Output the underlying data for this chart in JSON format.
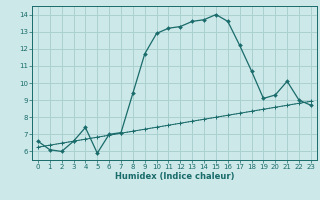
{
  "xlabel": "Humidex (Indice chaleur)",
  "bg_color": "#cce8e8",
  "grid_color": "#aad0d0",
  "line_color": "#1a6b6b",
  "xlim": [
    -0.5,
    23.5
  ],
  "ylim": [
    5.5,
    14.5
  ],
  "xticks": [
    0,
    1,
    2,
    3,
    4,
    5,
    6,
    7,
    8,
    9,
    10,
    11,
    12,
    13,
    14,
    15,
    16,
    17,
    18,
    19,
    20,
    21,
    22,
    23
  ],
  "yticks": [
    6,
    7,
    8,
    9,
    10,
    11,
    12,
    13,
    14
  ],
  "curve1_x": [
    0,
    1,
    2,
    3,
    4,
    5,
    6,
    7,
    8,
    9,
    10,
    11,
    12,
    13,
    14,
    15,
    16,
    17,
    18,
    19,
    20,
    21,
    22,
    23
  ],
  "curve1_y": [
    6.6,
    6.1,
    6.0,
    6.6,
    7.4,
    5.9,
    7.0,
    7.1,
    9.4,
    11.7,
    12.9,
    13.2,
    13.3,
    13.6,
    13.7,
    14.0,
    13.6,
    12.2,
    10.7,
    9.1,
    9.3,
    10.1,
    9.0,
    8.7
  ],
  "curve2_x": [
    0,
    1,
    2,
    3,
    4,
    5,
    6,
    7,
    8,
    9,
    10,
    11,
    12,
    13,
    14,
    15,
    16,
    17,
    18,
    19,
    20,
    21,
    22,
    23
  ],
  "curve2_y": [
    6.25,
    6.37,
    6.48,
    6.6,
    6.72,
    6.83,
    6.95,
    7.07,
    7.18,
    7.3,
    7.42,
    7.53,
    7.65,
    7.77,
    7.88,
    8.0,
    8.12,
    8.23,
    8.35,
    8.47,
    8.58,
    8.7,
    8.82,
    8.93
  ],
  "curve3_x": [
    0,
    23
  ],
  "curve3_y": [
    6.25,
    8.93
  ],
  "tick_fontsize": 5.0,
  "xlabel_fontsize": 6.0
}
